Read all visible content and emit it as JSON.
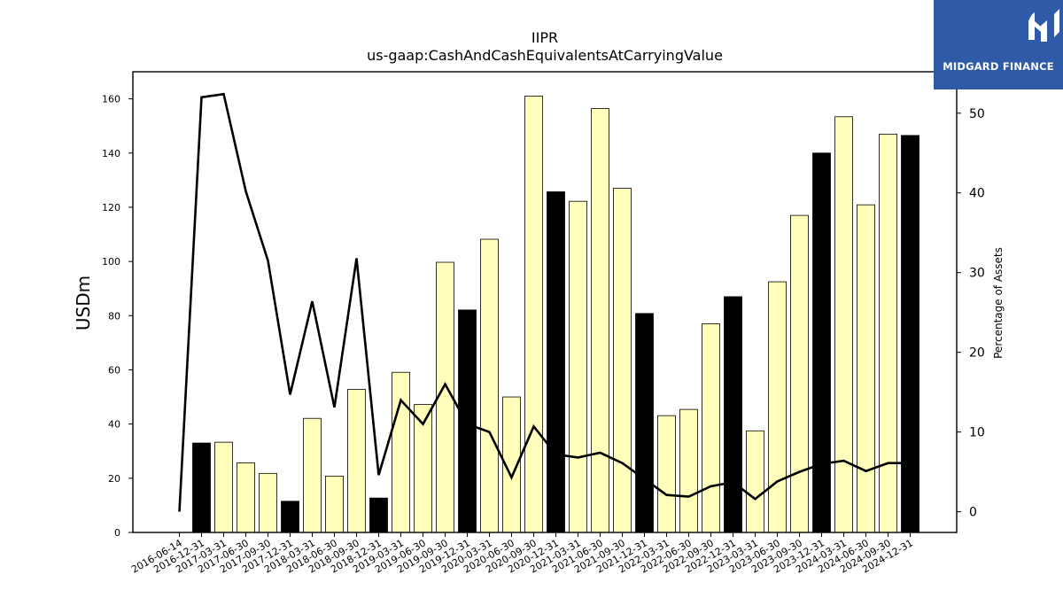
{
  "logo": {
    "text": "MIDGARD FINANCE"
  },
  "chart_data": {
    "type": "bar",
    "title": "IIPR",
    "subtitle": "us-gaap:CashAndCashEquivalentsAtCarryingValue",
    "ylabel": "USDm",
    "y2label": "Percentage of Assets",
    "ylim": [
      0,
      170
    ],
    "y2lim": [
      -2.6,
      55.2
    ],
    "yticks": [
      0,
      20,
      40,
      60,
      80,
      100,
      120,
      140,
      160
    ],
    "y2ticks": [
      0,
      10,
      20,
      30,
      40,
      50
    ],
    "categories": [
      "2016-06-14",
      "2016-12-31",
      "2017-03-31",
      "2017-06-30",
      "2017-09-30",
      "2017-12-31",
      "2018-03-31",
      "2018-06-30",
      "2018-09-30",
      "2018-12-31",
      "2019-03-31",
      "2019-06-30",
      "2019-09-30",
      "2019-12-31",
      "2020-03-31",
      "2020-06-30",
      "2020-09-30",
      "2020-12-31",
      "2021-03-31",
      "2021-06-30",
      "2021-09-30",
      "2021-12-31",
      "2022-03-31",
      "2022-06-30",
      "2022-09-30",
      "2022-12-31",
      "2023-03-31",
      "2023-06-30",
      "2023-09-30",
      "2023-12-31",
      "2024-03-31",
      "2024-06-30",
      "2024-09-30",
      "2024-12-31"
    ],
    "series": [
      {
        "type": "bar",
        "values": [
          null,
          33,
          33.3,
          25.7,
          21.8,
          11.5,
          42.1,
          20.8,
          52.8,
          12.7,
          59.1,
          47.2,
          99.7,
          82.1,
          108.2,
          50,
          161,
          125.7,
          122.2,
          156.4,
          127,
          80.8,
          43.1,
          45.4,
          77,
          87,
          37.5,
          92.5,
          117,
          140,
          153.4,
          120.9,
          147,
          146.5
        ],
        "year_end": [
          false,
          true,
          false,
          false,
          false,
          true,
          false,
          false,
          false,
          true,
          false,
          false,
          false,
          true,
          false,
          false,
          false,
          true,
          false,
          false,
          false,
          true,
          false,
          false,
          false,
          true,
          false,
          false,
          false,
          true,
          false,
          false,
          false,
          true
        ]
      },
      {
        "type": "line",
        "axis": "right",
        "values": [
          0,
          52,
          52.4,
          40.2,
          31.5,
          14.7,
          26.4,
          13.1,
          31.8,
          4.6,
          14,
          11,
          16,
          11,
          10,
          4.3,
          10.7,
          7.2,
          6.8,
          7.4,
          6.1,
          4.1,
          2.1,
          1.9,
          3.2,
          3.7,
          1.6,
          3.8,
          5,
          6,
          6.4,
          5.1,
          6.1,
          6.1
        ]
      }
    ],
    "colors": {
      "regular_bar": "#ffffbb",
      "year_end_bar": "#000000",
      "line": "#000000",
      "logo_bg": "#2f5aa8"
    }
  }
}
